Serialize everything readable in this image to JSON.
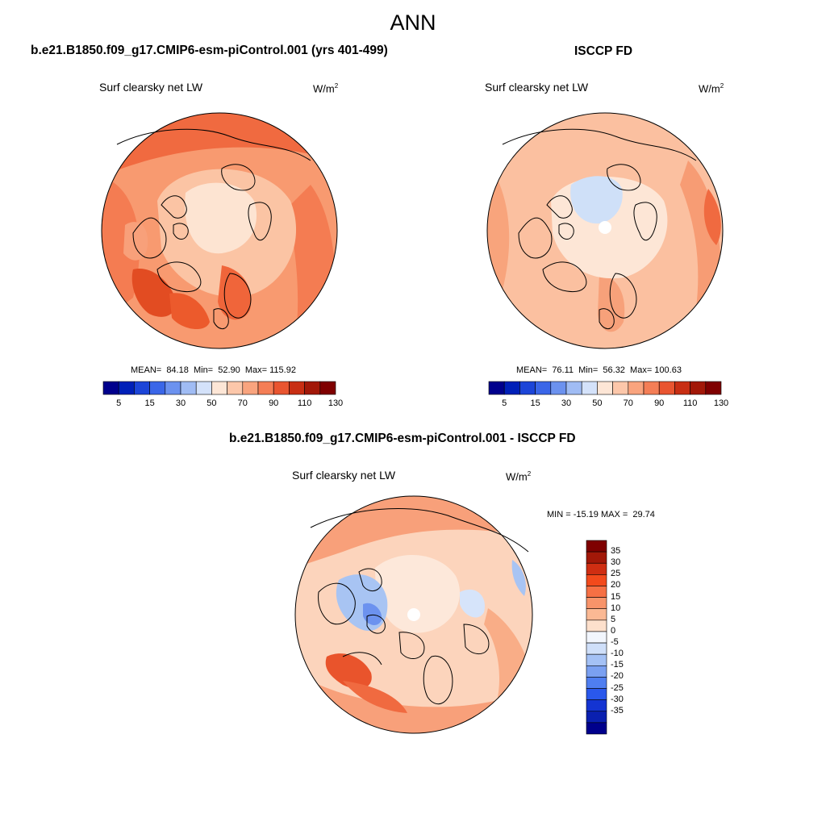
{
  "title": "ANN",
  "panels": {
    "model": {
      "case_title": "b.e21.B1850.f09_g17.CMIP6-esm-piControl.001 (yrs 401-499)",
      "variable": "Surf clearsky net LW",
      "units": "W/m",
      "units_sup": "2",
      "stats": "MEAN=  84.18  Min=  52.90  Max= 115.92"
    },
    "obs": {
      "case_title": "ISCCP FD",
      "variable": "Surf clearsky net LW",
      "units": "W/m",
      "units_sup": "2",
      "stats": "MEAN=  76.11  Min=  56.32  Max= 100.63"
    },
    "diff": {
      "case_title": "b.e21.B1850.f09_g17.CMIP6-esm-piControl.001 - ISCCP FD",
      "variable": "Surf clearsky net LW",
      "units": "W/m",
      "units_sup": "2",
      "stats": "MIN = -15.19 MAX =  29.74"
    }
  },
  "colorbar_abs": {
    "colors": [
      "#00008c",
      "#0020b8",
      "#1c45d8",
      "#3a66e8",
      "#6c92ef",
      "#a0bcf4",
      "#d4e2fa",
      "#fde6d6",
      "#fcc7aa",
      "#f9a47e",
      "#f47e56",
      "#e95530",
      "#c82e13",
      "#a21808",
      "#7f0000"
    ],
    "tick_labels": [
      "5",
      "15",
      "30",
      "50",
      "70",
      "90",
      "110",
      "130"
    ]
  },
  "colorbar_diff": {
    "colors": [
      "#7f0000",
      "#a21808",
      "#cf2e12",
      "#f24a1c",
      "#f67044",
      "#f8946a",
      "#fbb994",
      "#fde0cc",
      "#f2f6fd",
      "#cfdff9",
      "#a4c1f5",
      "#7aa0f1",
      "#4f7ef0",
      "#2a58ec",
      "#1434d2",
      "#0a20b0",
      "#00008c"
    ],
    "tick_labels": [
      "35",
      "30",
      "25",
      "20",
      "15",
      "10",
      "5",
      "0",
      "-5",
      "-10",
      "-15",
      "-20",
      "-25",
      "-30",
      "-35"
    ]
  },
  "map_fields": {
    "model": {
      "base_color": "#f89a70",
      "regions": [
        {
          "zone": "outer-north",
          "color": "#f06a40"
        },
        {
          "zone": "arctic-ocean",
          "color": "#fde4d2"
        },
        {
          "zone": "arctic-ring",
          "color": "#fbc4a4"
        },
        {
          "zone": "greenland",
          "color": "#f8a07a"
        },
        {
          "zone": "north-atlantic",
          "color": "#ec5a2c"
        },
        {
          "zone": "siberia",
          "color": "#f58a5c"
        }
      ]
    },
    "obs": {
      "base_color": "#fbc0a0",
      "regions": [
        {
          "zone": "outer-ring",
          "color": "#f79c74"
        },
        {
          "zone": "arctic-ocean",
          "color": "#cfe0f8"
        },
        {
          "zone": "arctic-ring",
          "color": "#fde6d6"
        },
        {
          "zone": "pole-gap",
          "color": "#ffffff"
        },
        {
          "zone": "siberia",
          "color": "#fcd6bf"
        },
        {
          "zone": "north-atlantic",
          "color": "#f7a17a"
        }
      ]
    },
    "diff": {
      "base_color": "#fcd4bc",
      "regions": [
        {
          "zone": "outer-ring",
          "color": "#f8a07a"
        },
        {
          "zone": "canadian-archipelago",
          "color": "#a8c4f3"
        },
        {
          "zone": "arctic-ocean",
          "color": "#fde8da"
        },
        {
          "zone": "pole-gap",
          "color": "#ffffff"
        },
        {
          "zone": "north-atlantic",
          "color": "#e9542c"
        },
        {
          "zone": "eurasia-patches",
          "color": "#d6e4fa"
        }
      ]
    }
  }
}
